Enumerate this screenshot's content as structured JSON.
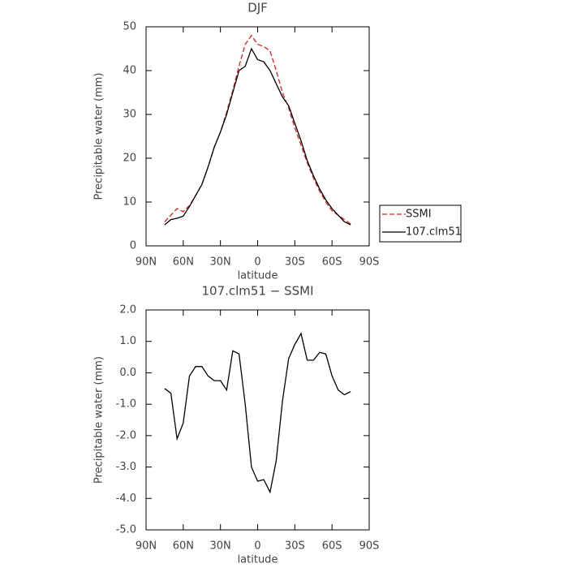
{
  "chart_data": [
    {
      "type": "line",
      "title": "DJF",
      "xlabel": "latitude",
      "ylabel": "Precipitable water (mm)",
      "x": [
        75,
        70,
        65,
        60,
        55,
        50,
        45,
        40,
        35,
        30,
        25,
        20,
        15,
        10,
        5,
        0,
        -5,
        -10,
        -15,
        -20,
        -25,
        -30,
        -35,
        -40,
        -45,
        -50,
        -55,
        -60,
        -65,
        -70,
        -75
      ],
      "series": [
        {
          "name": "SSMI",
          "color": "#e41a1c",
          "dashed": true,
          "values": [
            5.5,
            7,
            8.5,
            7.8,
            9.2,
            11.5,
            14,
            18,
            22.5,
            26,
            30.5,
            35.5,
            41,
            46,
            48,
            46,
            45.5,
            44.5,
            40,
            35,
            31.5,
            27,
            23,
            19,
            15.5,
            12.5,
            10,
            8,
            7,
            6,
            5
          ]
        },
        {
          "name": "107.clm51",
          "color": "#000000",
          "dashed": false,
          "values": [
            4.8,
            6,
            6.3,
            6.8,
            9,
            11.5,
            14,
            18,
            22.5,
            26,
            30,
            35,
            40,
            41,
            45,
            42.5,
            42,
            40,
            37,
            34,
            32,
            28,
            24,
            19.5,
            16,
            13,
            10.5,
            8.5,
            7,
            5.5,
            4.8
          ]
        }
      ],
      "xlim": [
        90,
        -90
      ],
      "xticks": [
        {
          "value": 90,
          "label": "90N"
        },
        {
          "value": 60,
          "label": "60N"
        },
        {
          "value": 30,
          "label": "30N"
        },
        0,
        {
          "value": -30,
          "label": "30S"
        },
        {
          "value": -60,
          "label": "60S"
        },
        {
          "value": -90,
          "label": "90S"
        }
      ],
      "ylim": [
        0,
        50
      ],
      "yticks": [
        0,
        10,
        20,
        30,
        40,
        50
      ],
      "legend": "outside-right"
    },
    {
      "type": "line",
      "title": "107.clm51 − SSMI",
      "xlabel": "latitude",
      "ylabel": "Precipitable water (mm)",
      "x": [
        75,
        70,
        65,
        60,
        55,
        50,
        45,
        40,
        35,
        30,
        25,
        20,
        15,
        10,
        5,
        0,
        -5,
        -10,
        -15,
        -20,
        -25,
        -30,
        -35,
        -40,
        -45,
        -50,
        -55,
        -60,
        -65,
        -70,
        -75
      ],
      "values": [
        -0.5,
        -0.65,
        -2.1,
        -1.6,
        -0.1,
        0.2,
        0.2,
        -0.1,
        -0.25,
        -0.25,
        -0.55,
        0.7,
        0.6,
        -1.0,
        -3.0,
        -3.45,
        -3.4,
        -3.8,
        -2.8,
        -0.9,
        0.45,
        0.9,
        1.25,
        0.4,
        0.4,
        0.65,
        0.6,
        -0.1,
        -0.55,
        -0.7,
        -0.6
      ],
      "color": "#000000",
      "xlim": [
        90,
        -90
      ],
      "xticks": [
        {
          "value": 90,
          "label": "90N"
        },
        {
          "value": 60,
          "label": "60N"
        },
        {
          "value": 30,
          "label": "30N"
        },
        0,
        {
          "value": -30,
          "label": "30S"
        },
        {
          "value": -60,
          "label": "60S"
        },
        {
          "value": -90,
          "label": "90S"
        }
      ],
      "ylim": [
        -5,
        2
      ],
      "yticks": [
        {
          "value": -5,
          "label": "-5.0"
        },
        {
          "value": -4,
          "label": "-4.0"
        },
        {
          "value": -3,
          "label": "-3.0"
        },
        {
          "value": -2,
          "label": "-2.0"
        },
        {
          "value": -1,
          "label": "-1.0"
        },
        {
          "value": 0,
          "label": "0.0"
        },
        {
          "value": 1,
          "label": "1.0"
        },
        {
          "value": 2,
          "label": "2.0"
        }
      ]
    }
  ]
}
